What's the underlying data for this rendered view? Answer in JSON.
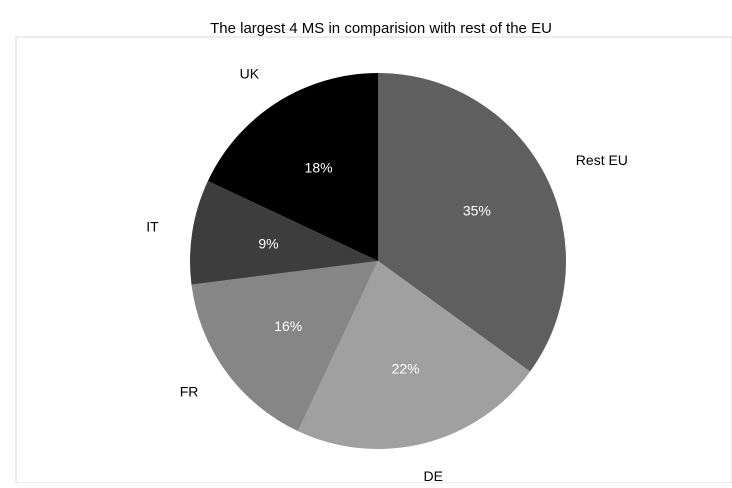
{
  "chart_data": {
    "type": "pie",
    "title": "The largest 4 MS in comparision with rest of the EU",
    "categories": [
      "Rest EU",
      "DE",
      "FR",
      "IT",
      "UK"
    ],
    "values": [
      35,
      22,
      16,
      9,
      18
    ],
    "value_labels": [
      "35%",
      "22%",
      "16%",
      "9%",
      "18%"
    ],
    "colors": [
      "#5f5f5f",
      "#a0a0a0",
      "#868686",
      "#3d3d3d",
      "#000000"
    ],
    "value_label_colors": [
      "#ffffff",
      "#ffffff",
      "#ffffff",
      "#ffffff",
      "#ffffff"
    ],
    "start": "12 o'clock",
    "direction": "clockwise",
    "legend": "none"
  }
}
